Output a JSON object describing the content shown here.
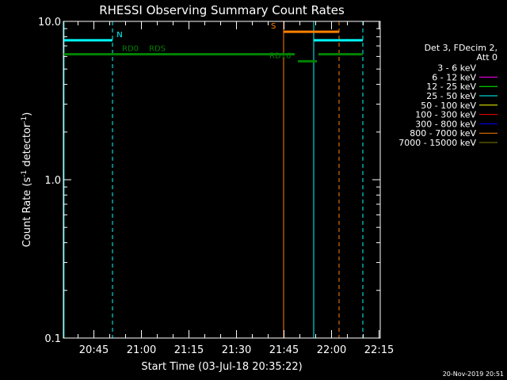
{
  "chart_data": {
    "type": "line",
    "title": "RHESSI Observing Summary Count Rates",
    "xlabel": "Start Time (03-Jul-18 20:35:22)",
    "ylabel_main": "Count Rate (s",
    "ylabel_sup1": "-1",
    "ylabel_mid": " detector",
    "ylabel_sup2": "-1",
    "ylabel_end": ")",
    "x_unit": "minutes since 20:35:22",
    "xlim": [
      0,
      100
    ],
    "ylim": [
      0.1,
      10.0
    ],
    "y_scale": "log",
    "x_ticks": [
      {
        "label": "20:45",
        "value": 9.63
      },
      {
        "label": "21:00",
        "value": 24.63
      },
      {
        "label": "21:15",
        "value": 39.63
      },
      {
        "label": "21:30",
        "value": 54.63
      },
      {
        "label": "21:45",
        "value": 69.63
      },
      {
        "label": "22:00",
        "value": 84.63
      },
      {
        "label": "22:15",
        "value": 99.63
      }
    ],
    "y_ticks": [
      {
        "label": "0.1",
        "value": 0.1
      },
      {
        "label": "1.0",
        "value": 1.0
      },
      {
        "label": "10.0",
        "value": 10.0
      }
    ],
    "legend": {
      "header": [
        "Det 3, FDecim 2,",
        "Att 0"
      ],
      "entries": [
        {
          "label": "3 - 6 keV",
          "color": "#000000"
        },
        {
          "label": "6 - 12 keV",
          "color": "#ff00ff"
        },
        {
          "label": "12 - 25 keV",
          "color": "#00ff00"
        },
        {
          "label": "25 - 50 keV",
          "color": "#00ffff"
        },
        {
          "label": "50 - 100 keV",
          "color": "#ffff00"
        },
        {
          "label": "100 - 300 keV",
          "color": "#ff0000"
        },
        {
          "label": "300 - 800 keV",
          "color": "#0000ff"
        },
        {
          "label": "800 - 7000 keV",
          "color": "#ff8000"
        },
        {
          "label": "7000 - 15000 keV",
          "color": "#808000"
        }
      ]
    },
    "flag_bars": [
      {
        "label": "N",
        "color": "#00ffff",
        "y": 7.6,
        "segments": [
          [
            0,
            15.5
          ],
          [
            79,
            94.5
          ]
        ],
        "label_x": 16.8
      },
      {
        "label": "RD0",
        "color": "#008000",
        "y": 6.2,
        "segments": [
          [
            0,
            73
          ]
        ],
        "label_x": 18.5
      },
      {
        "label": "RDS",
        "color": "#008000",
        "y": 6.2,
        "segments": [
          [
            80.5,
            94.5
          ]
        ],
        "label_x": 27
      },
      {
        "label": "RD16",
        "color": "#008000",
        "y": 5.6,
        "segments": [
          [
            74,
            80
          ]
        ],
        "label_x": 65
      },
      {
        "label": "S",
        "color": "#ff8000",
        "y": 8.6,
        "segments": [
          [
            69.5,
            87
          ]
        ],
        "label_x": 65.5
      }
    ],
    "vertical_lines": [
      {
        "x": 0.2,
        "color": "#00ffff",
        "style": "solid"
      },
      {
        "x": 15.5,
        "color": "#00ffff",
        "style": "dashed"
      },
      {
        "x": 69.5,
        "color": "#ff8000",
        "style": "solid"
      },
      {
        "x": 79,
        "color": "#00ffff",
        "style": "solid"
      },
      {
        "x": 87,
        "color": "#ff8000",
        "style": "dashed"
      },
      {
        "x": 94.5,
        "color": "#00ffff",
        "style": "dashed"
      }
    ],
    "timestamp": "20-Nov-2019 20:51"
  },
  "colors": {
    "background": "#000000",
    "axes": "#ffffff"
  }
}
